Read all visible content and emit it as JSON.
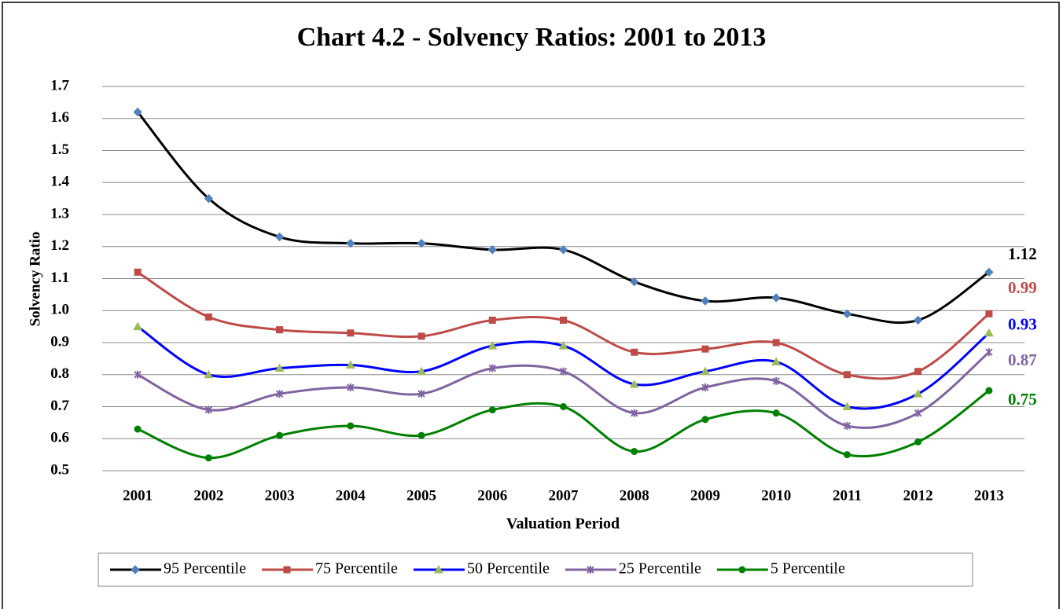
{
  "chart_data": {
    "type": "line",
    "title": "Chart 4.2 - Solvency Ratios: 2001 to 2013",
    "x_label": "Valuation Period",
    "y_label": "Solvency Ratio",
    "categories": [
      "2001",
      "2002",
      "2003",
      "2004",
      "2005",
      "2006",
      "2007",
      "2008",
      "2009",
      "2010",
      "2011",
      "2012",
      "2013"
    ],
    "ylim": [
      0.5,
      1.7
    ],
    "yticks": [
      0.5,
      0.6,
      0.7,
      0.8,
      0.9,
      {
        "value": 1,
        "label": "1.0"
      },
      1.1,
      1.2,
      1.3,
      1.4,
      1.5,
      1.6,
      1.7
    ],
    "grid": true,
    "smooth": true,
    "legend": "bottom",
    "series": [
      {
        "name": "95 Percentile",
        "color": "#000000",
        "marker": "diamond",
        "marker_color": "#4f81bd",
        "values": [
          1.62,
          1.35,
          1.23,
          1.21,
          1.21,
          1.19,
          1.19,
          1.09,
          1.03,
          1.04,
          0.99,
          0.97,
          1.12
        ]
      },
      {
        "name": "75 Percentile",
        "color": "#be4b48",
        "marker": "square",
        "marker_color": "#be4b48",
        "values": [
          1.12,
          0.98,
          0.94,
          0.93,
          0.92,
          0.97,
          0.97,
          0.87,
          0.88,
          0.9,
          0.8,
          0.81,
          0.99
        ]
      },
      {
        "name": "50 Percentile",
        "color": "#0000ff",
        "marker": "triangle",
        "marker_color": "#9bbb59",
        "values": [
          0.95,
          0.8,
          0.82,
          0.83,
          0.81,
          0.89,
          0.89,
          0.77,
          0.81,
          0.84,
          0.7,
          0.74,
          0.93
        ]
      },
      {
        "name": "25 Percentile",
        "color": "#8064a2",
        "marker": "star",
        "marker_color": "#8064a2",
        "values": [
          0.8,
          0.69,
          0.74,
          0.76,
          0.74,
          0.82,
          0.81,
          0.68,
          0.76,
          0.78,
          0.64,
          0.68,
          0.87
        ]
      },
      {
        "name": "5 Percentile",
        "color": "#008000",
        "marker": "circle",
        "marker_color": "#008000",
        "values": [
          0.63,
          0.54,
          0.61,
          0.64,
          0.61,
          0.69,
          0.7,
          0.56,
          0.66,
          0.68,
          0.55,
          0.59,
          0.75
        ]
      }
    ]
  }
}
